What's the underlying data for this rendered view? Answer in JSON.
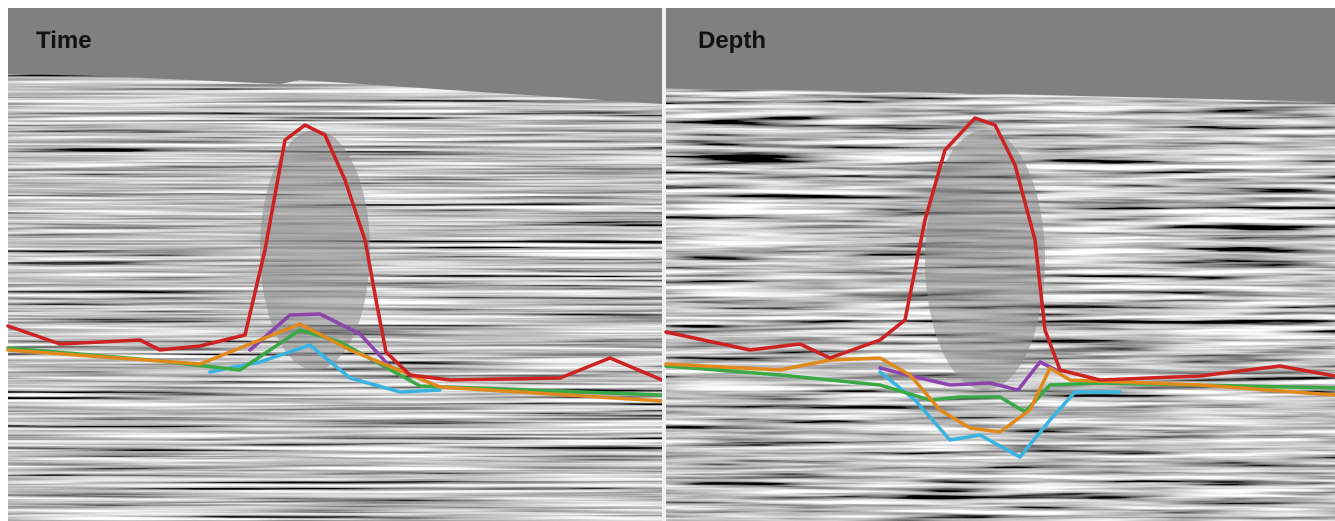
{
  "panels": [
    {
      "title": "Time"
    },
    {
      "title": "Depth"
    }
  ]
}
